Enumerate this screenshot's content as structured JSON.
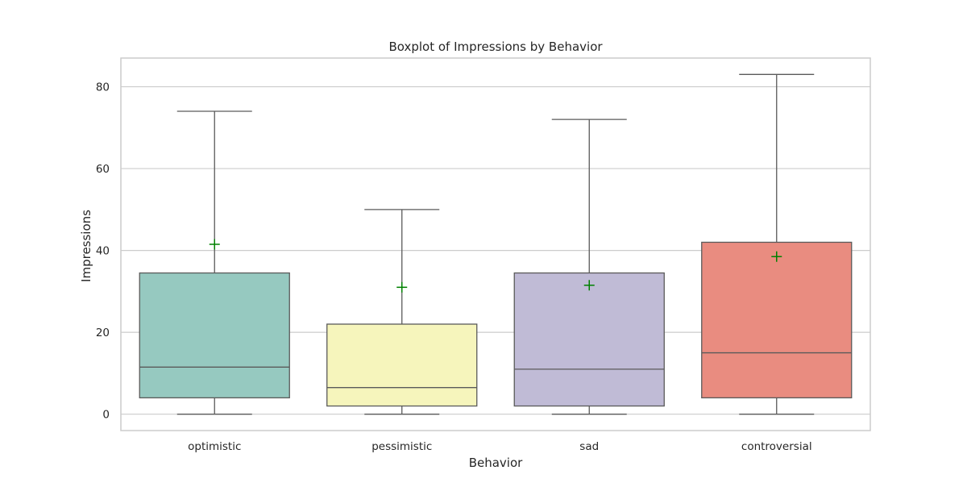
{
  "chart_data": {
    "type": "boxplot",
    "title": "Boxplot of Impressions by Behavior",
    "xlabel": "Behavior",
    "ylabel": "Impressions",
    "ylim": [
      -4,
      87
    ],
    "yticks": [
      0,
      20,
      40,
      60,
      80
    ],
    "grid": true,
    "categories": [
      "optimistic",
      "pessimistic",
      "sad",
      "controversial"
    ],
    "boxes": [
      {
        "category": "optimistic",
        "whisker_low": 0,
        "q1": 4,
        "median": 11.5,
        "q3": 34.5,
        "whisker_high": 74,
        "mean": 41.5,
        "color": "#96c9c0"
      },
      {
        "category": "pessimistic",
        "whisker_low": 0,
        "q1": 2,
        "median": 6.5,
        "q3": 22,
        "whisker_high": 50,
        "mean": 31,
        "color": "#f6f5bc"
      },
      {
        "category": "sad",
        "whisker_low": 0,
        "q1": 2,
        "median": 11,
        "q3": 34.5,
        "whisker_high": 72,
        "mean": 31.5,
        "color": "#c0bbd6"
      },
      {
        "category": "controversial",
        "whisker_low": 0,
        "q1": 4,
        "median": 15,
        "q3": 42,
        "whisker_high": 83,
        "mean": 38.5,
        "color": "#e98c80"
      }
    ],
    "colors": {
      "line": "#5a5a5a",
      "mean_marker": "#008000",
      "grid": "#cccccc",
      "frame": "#cccccc"
    }
  }
}
